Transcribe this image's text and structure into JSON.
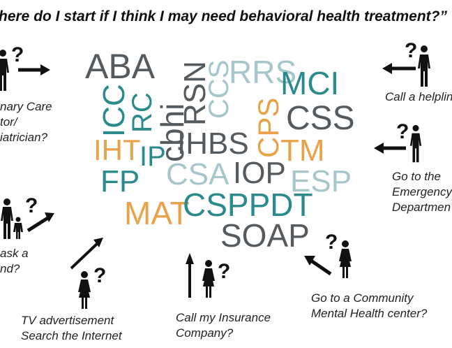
{
  "title": "here do I start if I think I may need behavioral health treatment?”",
  "colors": {
    "gray": "#555a5e",
    "teal": "#2a8a8c",
    "orange": "#e8a34a",
    "lightblue": "#a7c6cc",
    "black": "#111111"
  },
  "labels": {
    "primary_care": "nary Care\ntor/\niatrician?",
    "ask_friend": "ask a\nnd?",
    "tv_internet": "TV advertisement\nSearch the Internet",
    "insurance": "Call my Insurance\nCompany?",
    "community": "Go to a Community\nMental Health center?",
    "emergency": "Go to the\nEmergency\nDepartmen",
    "helpline": "Call a helplin"
  },
  "question_mark": "?",
  "words": {
    "aba": "ABA",
    "icc": "ICC",
    "rc": "RC",
    "cbhi": "cbhi",
    "rsn": "RSN",
    "ccs": "CCS",
    "rrs": "RRS",
    "mci": "MCI",
    "cps": "CPS",
    "css": "CSS",
    "iht": "IHT",
    "ip": "IP",
    "ihbs": "IHBS",
    "tm": "TM",
    "fp": "FP",
    "csa": "CSA",
    "iop": "IOP",
    "esp": "ESP",
    "mat": "MAT",
    "csppdt": "CSPPDT",
    "soap": "SOAP"
  },
  "icons": [
    "person-icon",
    "parent-child-icon",
    "arrow-icon"
  ]
}
